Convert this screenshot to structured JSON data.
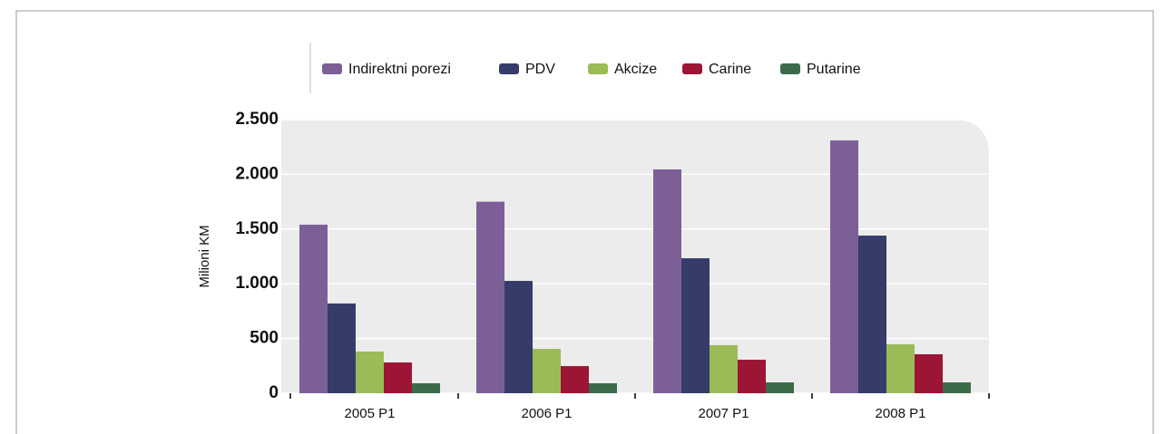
{
  "chart_data": {
    "type": "bar",
    "y_label": "Milioni KM",
    "categories": [
      "2005 P1",
      "2006 P1",
      "2007 P1",
      "2008 P1"
    ],
    "series": [
      {
        "name": "Indirektni porezi",
        "color": "#7d5f98",
        "values": [
          1540,
          1750,
          2045,
          2310
        ]
      },
      {
        "name": "PDV",
        "color": "#363c69",
        "values": [
          820,
          1026,
          1233,
          1440
        ]
      },
      {
        "name": "Akcize",
        "color": "#9bbb59",
        "values": [
          381,
          405,
          439,
          447
        ]
      },
      {
        "name": "Carine",
        "color": "#9c1535",
        "values": [
          281,
          248,
          306,
          356
        ]
      },
      {
        "name": "Putarine",
        "color": "#3b6b48",
        "values": [
          91,
          91,
          99,
          99
        ]
      }
    ],
    "ylim": [
      0,
      2500
    ],
    "yticks": [
      0,
      500,
      {
        "value": 1000,
        "label": "1.000"
      },
      {
        "value": 1500,
        "label": "1.500"
      },
      {
        "value": 2000,
        "label": "2.000"
      },
      {
        "value": 2500,
        "label": "2.500"
      }
    ],
    "grid": true
  }
}
